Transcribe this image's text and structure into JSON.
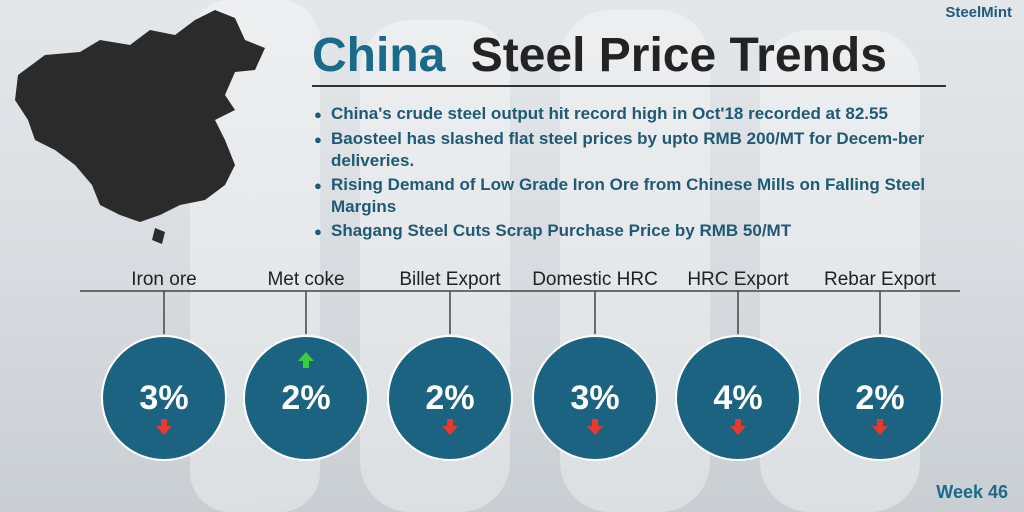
{
  "logo": "SteelMint",
  "header": {
    "title_highlight": "China",
    "title_rest": "Steel Price Trends"
  },
  "bullets": [
    "China's crude steel output hit record high in Oct'18 recorded at 82.55",
    "Baosteel  has slashed flat steel prices by upto RMB 200/MT  for Decem-ber deliveries.",
    "Rising Demand of Low Grade Iron Ore from Chinese Mills on Falling Steel Margins",
    "Shagang Steel Cuts Scrap Purchase Price by RMB 50/MT"
  ],
  "items": [
    {
      "label": "Iron ore",
      "value": "3%",
      "direction": "down"
    },
    {
      "label": "Met coke",
      "value": "2%",
      "direction": "up"
    },
    {
      "label": "Billet Export",
      "value": "2%",
      "direction": "down"
    },
    {
      "label": "Domestic HRC",
      "value": "3%",
      "direction": "down"
    },
    {
      "label": "HRC Export",
      "value": "4%",
      "direction": "down"
    },
    {
      "label": "Rebar Export",
      "value": "2%",
      "direction": "down"
    }
  ],
  "footer": "Week 46"
}
